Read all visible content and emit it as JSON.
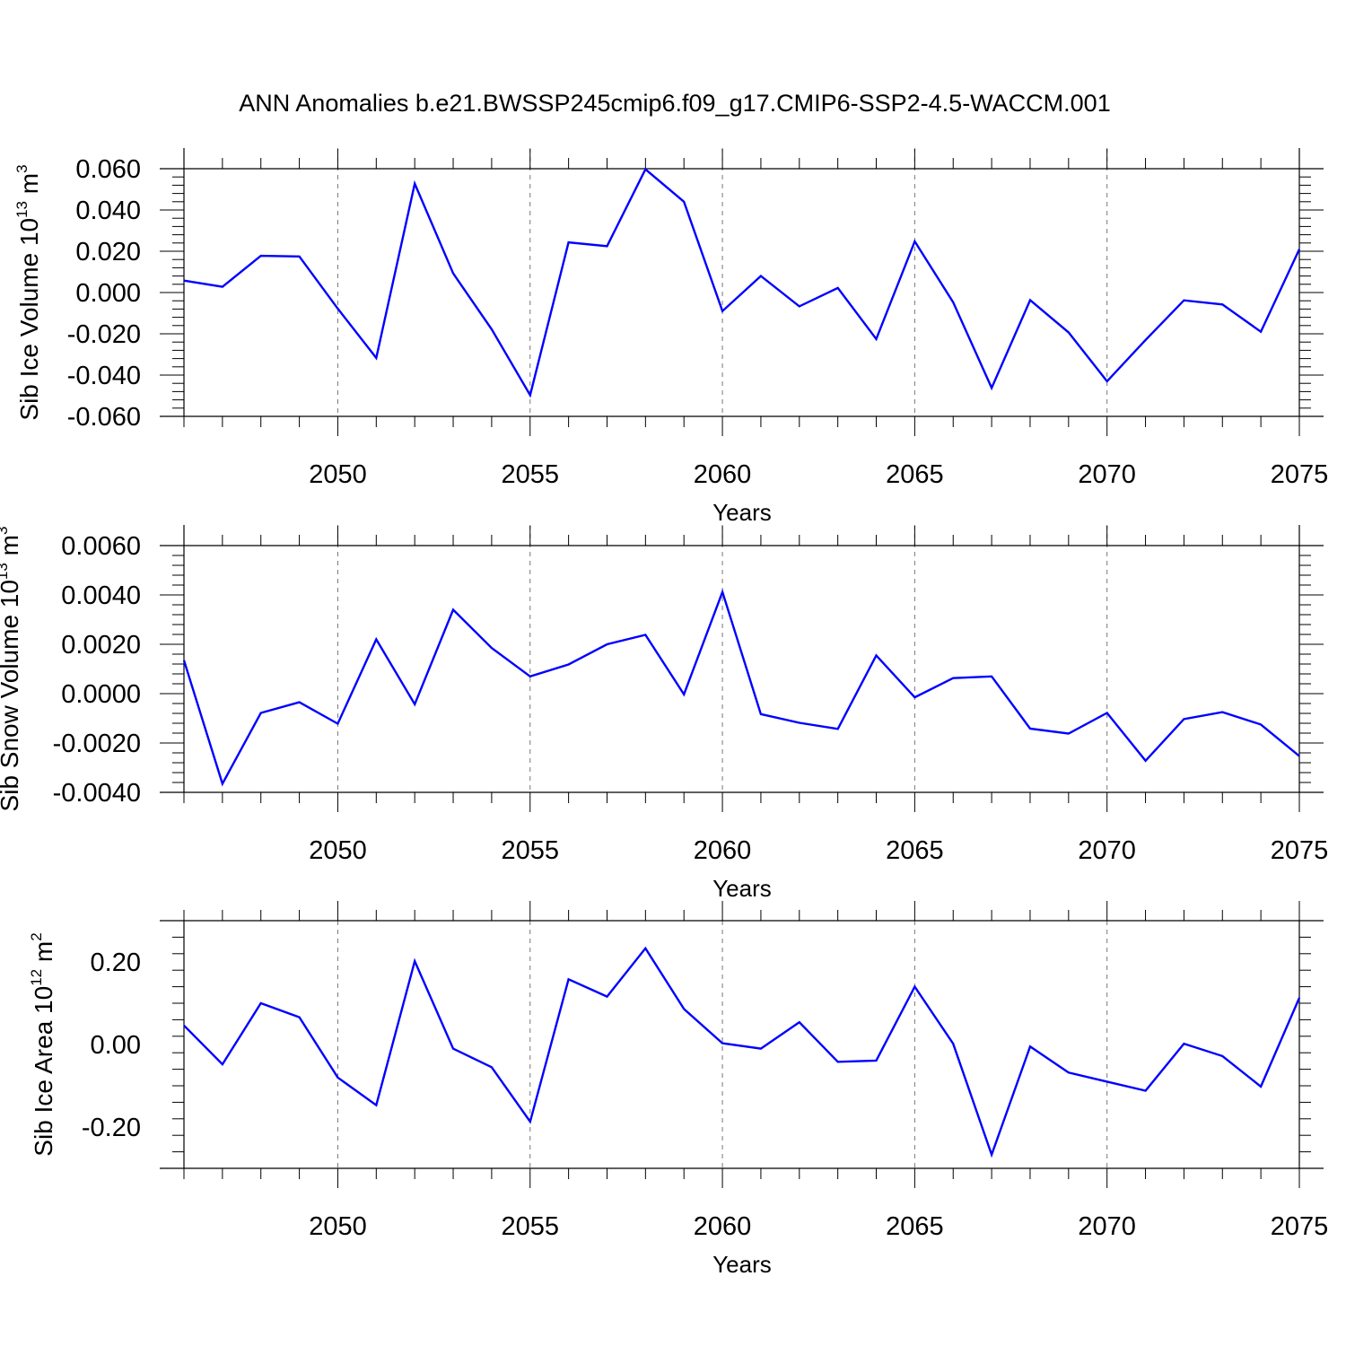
{
  "title": "ANN Anomalies b.e21.BWSSP245cmip6.f09_g17.CMIP6-SSP2-4.5-WACCM.001",
  "line_color": "#0000ff",
  "chart_data": [
    {
      "type": "line",
      "ylabel_main": "Sib Ice Volume 10",
      "ylabel_exp1": "13",
      "ylabel_mid": " m",
      "ylabel_exp2": "3",
      "xlabel": "Years",
      "xlim": [
        2046,
        2075
      ],
      "ylim": [
        -0.06,
        0.06
      ],
      "x_ticks": [
        "2050",
        "2055",
        "2060",
        "2065",
        "2070",
        "2075"
      ],
      "y_ticks": [
        "0.060",
        "0.040",
        "0.020",
        "0.000",
        "-0.020",
        "-0.040",
        "-0.060"
      ],
      "x": [
        2046,
        2047,
        2048,
        2049,
        2050,
        2051,
        2052,
        2053,
        2054,
        2055,
        2056,
        2057,
        2058,
        2059,
        2060,
        2061,
        2062,
        2063,
        2064,
        2065,
        2066,
        2067,
        2068,
        2069,
        2070,
        2071,
        2072,
        2073,
        2074,
        2075
      ],
      "series": [
        {
          "values": [
            0.0058,
            0.0028,
            0.0178,
            0.0175,
            -0.0078,
            -0.0317,
            0.0528,
            0.0093,
            -0.0178,
            -0.0497,
            0.0243,
            0.0225,
            0.0597,
            0.044,
            -0.009,
            0.008,
            -0.0067,
            0.0022,
            -0.0225,
            0.0248,
            -0.0047,
            -0.0462,
            -0.0037,
            -0.0193,
            -0.043,
            -0.023,
            -0.0038,
            -0.0058,
            -0.019,
            0.021
          ]
        }
      ]
    },
    {
      "type": "line",
      "ylabel_main": "Sib Snow Volume 10",
      "ylabel_exp1": "13",
      "ylabel_mid": " m",
      "ylabel_exp2": "3",
      "xlabel": "Years",
      "xlim": [
        2046,
        2075
      ],
      "ylim": [
        -0.004,
        0.006
      ],
      "x_ticks": [
        "2050",
        "2055",
        "2060",
        "2065",
        "2070",
        "2075"
      ],
      "y_ticks": [
        "0.0060",
        "0.0040",
        "0.0020",
        "0.0000",
        "-0.0020",
        "-0.0040"
      ],
      "x": [
        2046,
        2047,
        2048,
        2049,
        2050,
        2051,
        2052,
        2053,
        2054,
        2055,
        2056,
        2057,
        2058,
        2059,
        2060,
        2061,
        2062,
        2063,
        2064,
        2065,
        2066,
        2067,
        2068,
        2069,
        2070,
        2071,
        2072,
        2073,
        2074,
        2075
      ],
      "series": [
        {
          "values": [
            0.00135,
            -0.00365,
            -0.00078,
            -0.00035,
            -0.00122,
            0.0022,
            -0.00043,
            0.0034,
            0.00185,
            0.0007,
            0.00118,
            0.002,
            0.00238,
            -3e-05,
            0.00412,
            -0.00083,
            -0.00118,
            -0.00143,
            0.00155,
            -0.00015,
            0.00063,
            0.0007,
            -0.00142,
            -0.00162,
            -0.00078,
            -0.00272,
            -0.00103,
            -0.00075,
            -0.00125,
            -0.00253
          ]
        }
      ]
    },
    {
      "type": "line",
      "ylabel_main": "Sib Ice Area 10",
      "ylabel_exp1": "12",
      "ylabel_mid": " m",
      "ylabel_exp2": "2",
      "xlabel": "Years",
      "xlim": [
        2046,
        2075
      ],
      "ylim": [
        -0.3,
        0.3
      ],
      "x_ticks": [
        "2050",
        "2055",
        "2060",
        "2065",
        "2070",
        "2075"
      ],
      "y_ticks": [
        "0.20",
        "0.00",
        "-0.20"
      ],
      "x": [
        2046,
        2047,
        2048,
        2049,
        2050,
        2051,
        2052,
        2053,
        2054,
        2055,
        2056,
        2057,
        2058,
        2059,
        2060,
        2061,
        2062,
        2063,
        2064,
        2065,
        2066,
        2067,
        2068,
        2069,
        2070,
        2071,
        2072,
        2073,
        2074,
        2075
      ],
      "series": [
        {
          "values": [
            0.046,
            -0.048,
            0.1,
            0.066,
            -0.08,
            -0.147,
            0.202,
            -0.01,
            -0.055,
            -0.187,
            0.158,
            0.116,
            0.233,
            0.086,
            0.003,
            -0.01,
            0.054,
            -0.042,
            -0.039,
            0.14,
            0.002,
            -0.267,
            -0.005,
            -0.068,
            -0.09,
            -0.112,
            0.002,
            -0.028,
            -0.102,
            0.113
          ]
        }
      ]
    }
  ]
}
